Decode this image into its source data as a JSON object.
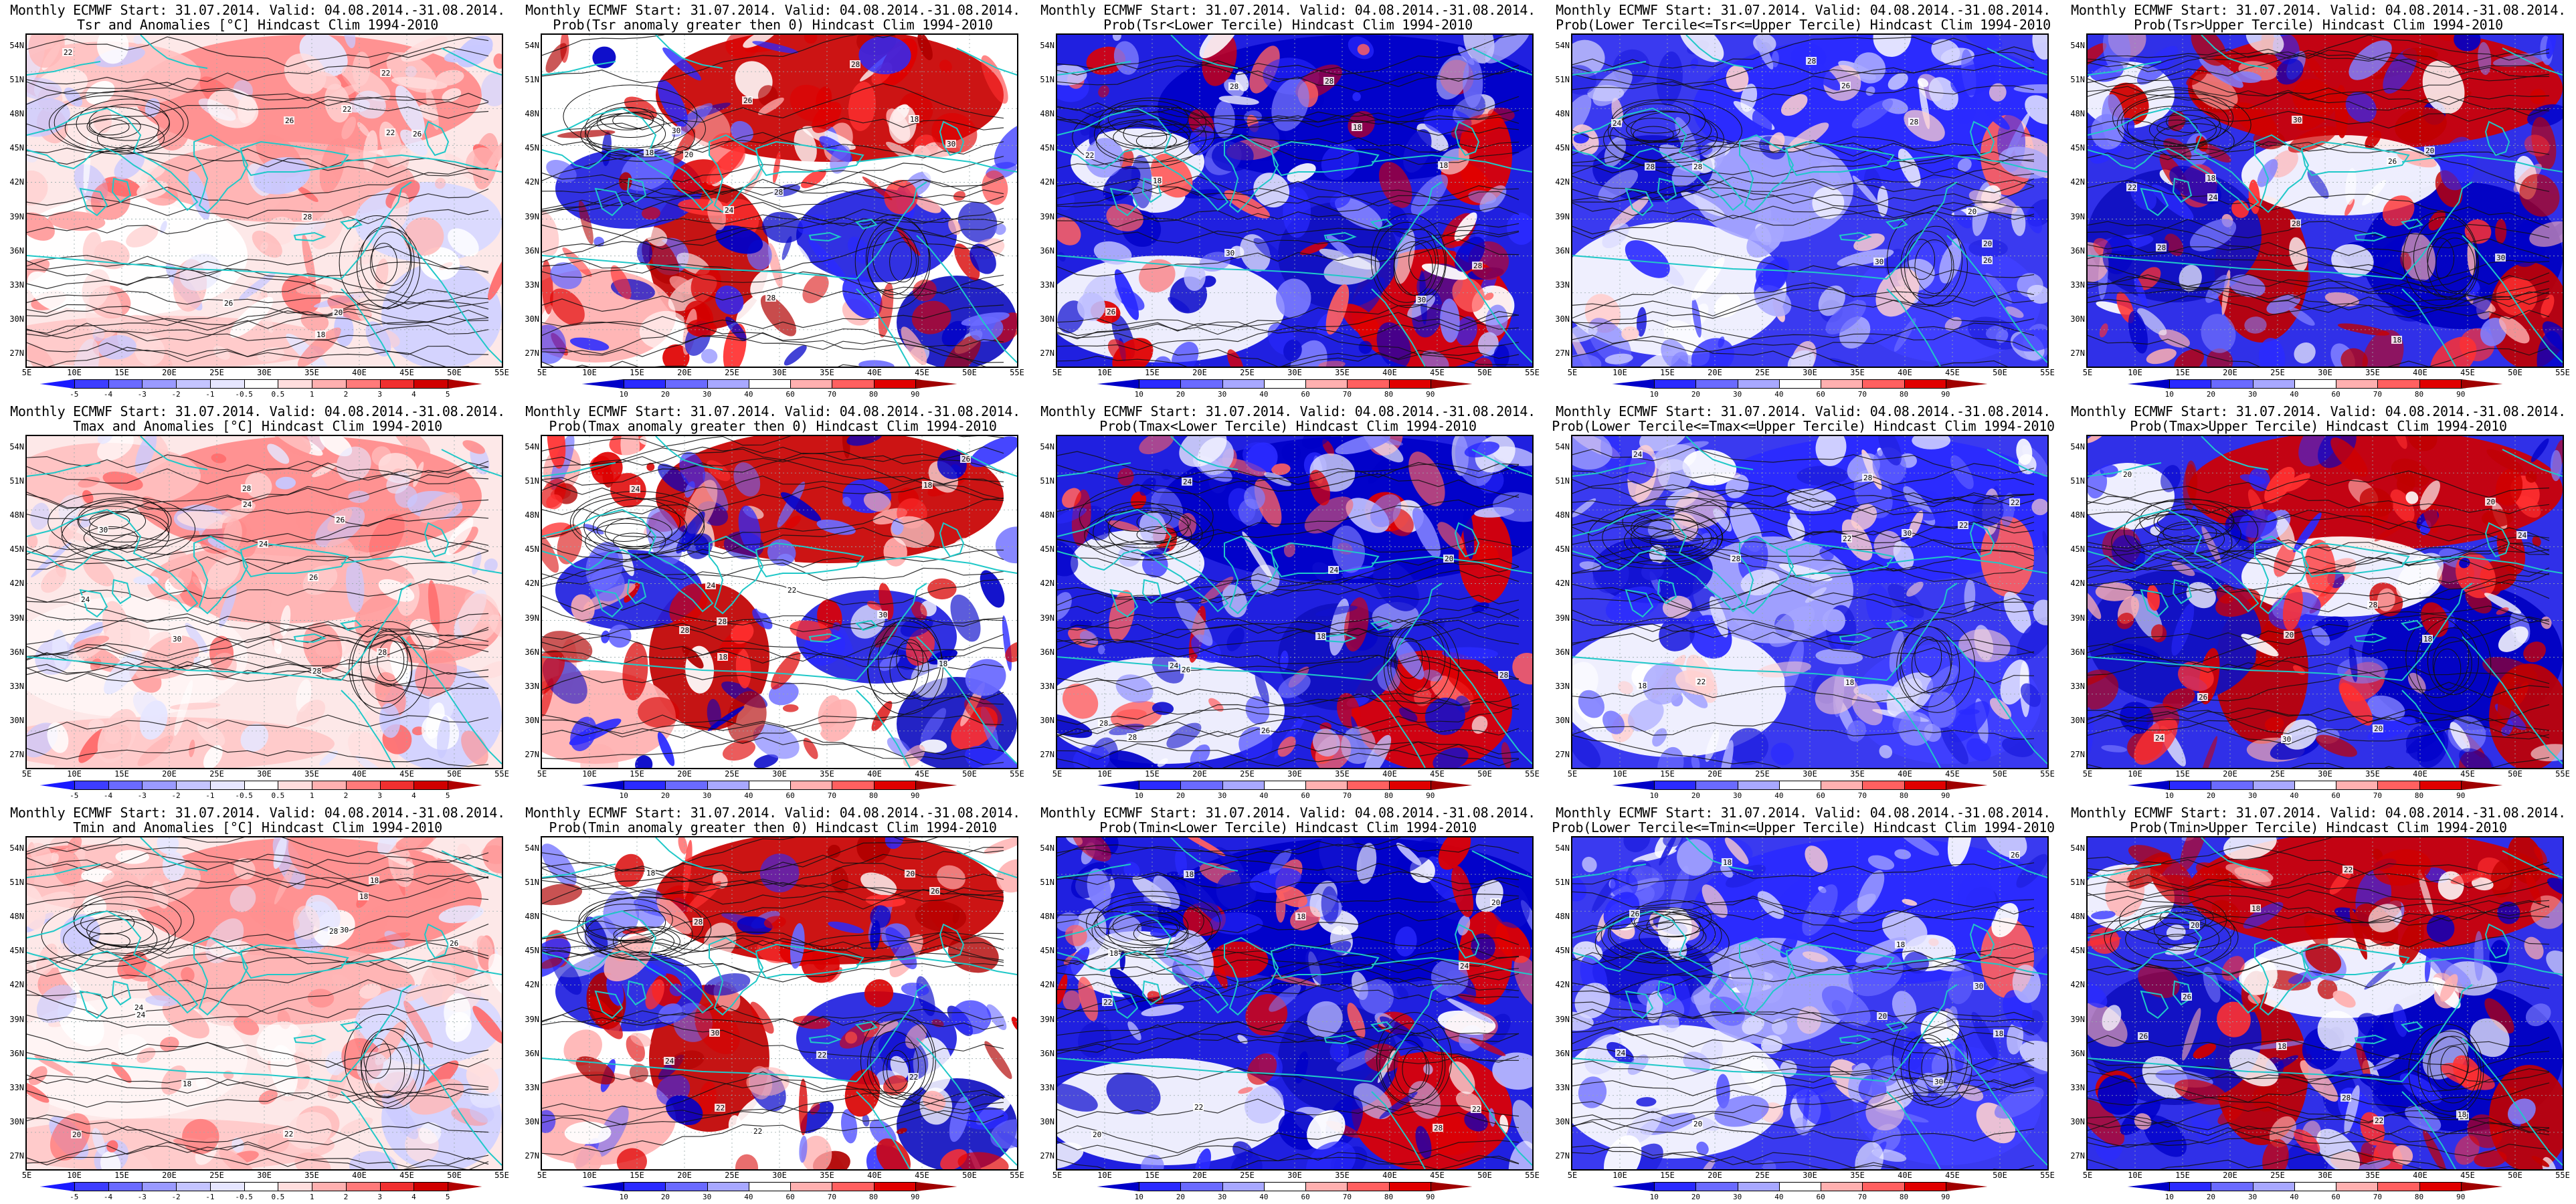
{
  "header_line": "Monthly ECMWF Start: 31.07.2014. Valid: 04.08.2014.-31.08.2014.",
  "lat_labels": [
    "54N",
    "51N",
    "48N",
    "45N",
    "42N",
    "39N",
    "36N",
    "33N",
    "30N",
    "27N"
  ],
  "lon_labels": [
    "5E",
    "10E",
    "15E",
    "20E",
    "25E",
    "30E",
    "35E",
    "40E",
    "45E",
    "50E",
    "55E"
  ],
  "anomaly_colorbar": {
    "labels": [
      "-5",
      "-4",
      "-3",
      "-2",
      "-1",
      "-0.5",
      "0.5",
      "1",
      "2",
      "3",
      "4",
      "5"
    ],
    "colors": [
      "#1a1aff",
      "#3d3dff",
      "#6a6aff",
      "#9a9aff",
      "#c4c4ff",
      "#e6e6ff",
      "#ffffff",
      "#ffdede",
      "#ffb0b0",
      "#ff7a7a",
      "#f03030",
      "#d00000",
      "#b00000"
    ]
  },
  "prob_colorbar": {
    "labels": [
      "10",
      "20",
      "30",
      "40",
      "60",
      "70",
      "80",
      "90"
    ],
    "colors": [
      "#0000c8",
      "#2a2aff",
      "#6a6aff",
      "#a8a8ff",
      "#ffffff",
      "#ffb0b0",
      "#ff6060",
      "#e00000",
      "#a00000"
    ]
  },
  "rows": [
    {
      "variable": "Tsr",
      "panels": [
        {
          "kind": "anomaly",
          "title2": "Tsr and Anomalies [°C] Hindcast Clim 1994-2010"
        },
        {
          "kind": "prob",
          "title2": "Prob(Tsr anomaly greater then 0) Hindcast Clim 1994-2010"
        },
        {
          "kind": "lower",
          "title2": "Prob(Tsr<Lower Tercile) Hindcast Clim 1994-2010"
        },
        {
          "kind": "middle",
          "title2": "Prob(Lower Tercile<=Tsr<=Upper Tercile) Hindcast Clim 1994-2010"
        },
        {
          "kind": "upper",
          "title2": "Prob(Tsr>Upper Tercile) Hindcast Clim 1994-2010"
        }
      ]
    },
    {
      "variable": "Tmax",
      "panels": [
        {
          "kind": "anomaly",
          "title2": "Tmax and Anomalies [°C] Hindcast Clim 1994-2010"
        },
        {
          "kind": "prob",
          "title2": "Prob(Tmax anomaly greater then 0) Hindcast Clim 1994-2010"
        },
        {
          "kind": "lower",
          "title2": "Prob(Tmax<Lower Tercile) Hindcast Clim 1994-2010"
        },
        {
          "kind": "middle",
          "title2": "Prob(Lower Tercile<=Tmax<=Upper Tercile) Hindcast Clim 1994-2010"
        },
        {
          "kind": "upper",
          "title2": "Prob(Tmax>Upper Tercile) Hindcast Clim 1994-2010"
        }
      ]
    },
    {
      "variable": "Tmin",
      "panels": [
        {
          "kind": "anomaly",
          "title2": "Tmin and Anomalies [°C] Hindcast Clim 1994-2010"
        },
        {
          "kind": "prob",
          "title2": "Prob(Tmin anomaly greater then 0) Hindcast Clim 1994-2010"
        },
        {
          "kind": "lower",
          "title2": "Prob(Tmin<Lower Tercile) Hindcast Clim 1994-2010"
        },
        {
          "kind": "middle",
          "title2": "Prob(Lower Tercile<=Tmin<=Upper Tercile) Hindcast Clim 1994-2010"
        },
        {
          "kind": "upper",
          "title2": "Prob(Tmin>Upper Tercile) Hindcast Clim 1994-2010"
        }
      ]
    }
  ],
  "contour_labels": [
    "22",
    "24",
    "26",
    "28",
    "30",
    "20",
    "18"
  ]
}
